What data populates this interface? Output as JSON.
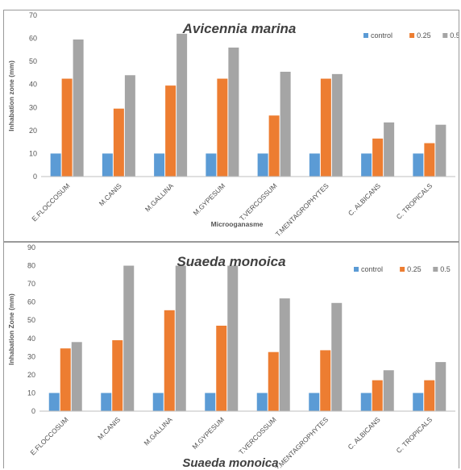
{
  "footer_title": "Suaeda monoica",
  "chart_data": [
    {
      "type": "bar",
      "title": "Avicennia marina",
      "xlabel": "Microoganasme",
      "ylabel": "Inhabation zone (mm)",
      "ylim": [
        0,
        70
      ],
      "yticks": [
        0,
        10,
        20,
        30,
        40,
        50,
        60,
        70
      ],
      "grid": false,
      "legend_position": "top-right",
      "categories": [
        "E.FLOCCOSUM",
        "M.CANIS",
        "M.GALLINA",
        "M.GYPESUM",
        "T.VERCOSSUM",
        "T.MENTAGROPHYTES",
        "C. ALBICANS",
        "C. TROPICALS"
      ],
      "series": [
        {
          "name": "control",
          "color": "#5b9bd5",
          "values": [
            10,
            10,
            10,
            10,
            10,
            10,
            10,
            10
          ]
        },
        {
          "name": "0.25",
          "color": "#ed7d31",
          "values": [
            42.5,
            29.5,
            39.5,
            42.5,
            26.5,
            42.5,
            16.5,
            14.5
          ]
        },
        {
          "name": "0.5",
          "color": "#a5a5a5",
          "values": [
            59.5,
            44,
            62,
            56,
            45.5,
            44.5,
            23.5,
            22.5
          ]
        }
      ]
    },
    {
      "type": "bar",
      "title": "Suaeda monoica",
      "xlabel": "",
      "ylabel": "Inhabation Zone (mm)",
      "ylim": [
        0,
        90
      ],
      "yticks": [
        0,
        10,
        20,
        30,
        40,
        50,
        60,
        70,
        80,
        90
      ],
      "grid": false,
      "legend_position": "top-right",
      "categories": [
        "E.FLOCCOSUM",
        "M.CANIS",
        "M.GALLINA",
        "M.GYPESUM",
        "T.VERCOSSUM",
        "T.MENTAGROPHYTES",
        "C. ALBICANS",
        "C. TROPICALS"
      ],
      "series": [
        {
          "name": "control",
          "color": "#5b9bd5",
          "values": [
            10,
            10,
            10,
            10,
            10,
            10,
            10,
            10
          ]
        },
        {
          "name": "0.25",
          "color": "#ed7d31",
          "values": [
            34.5,
            39,
            55.5,
            47,
            32.5,
            33.5,
            17,
            17
          ]
        },
        {
          "name": "0.5",
          "color": "#a5a5a5",
          "values": [
            38,
            80,
            80,
            80,
            62,
            59.5,
            22.5,
            27
          ]
        }
      ]
    }
  ]
}
